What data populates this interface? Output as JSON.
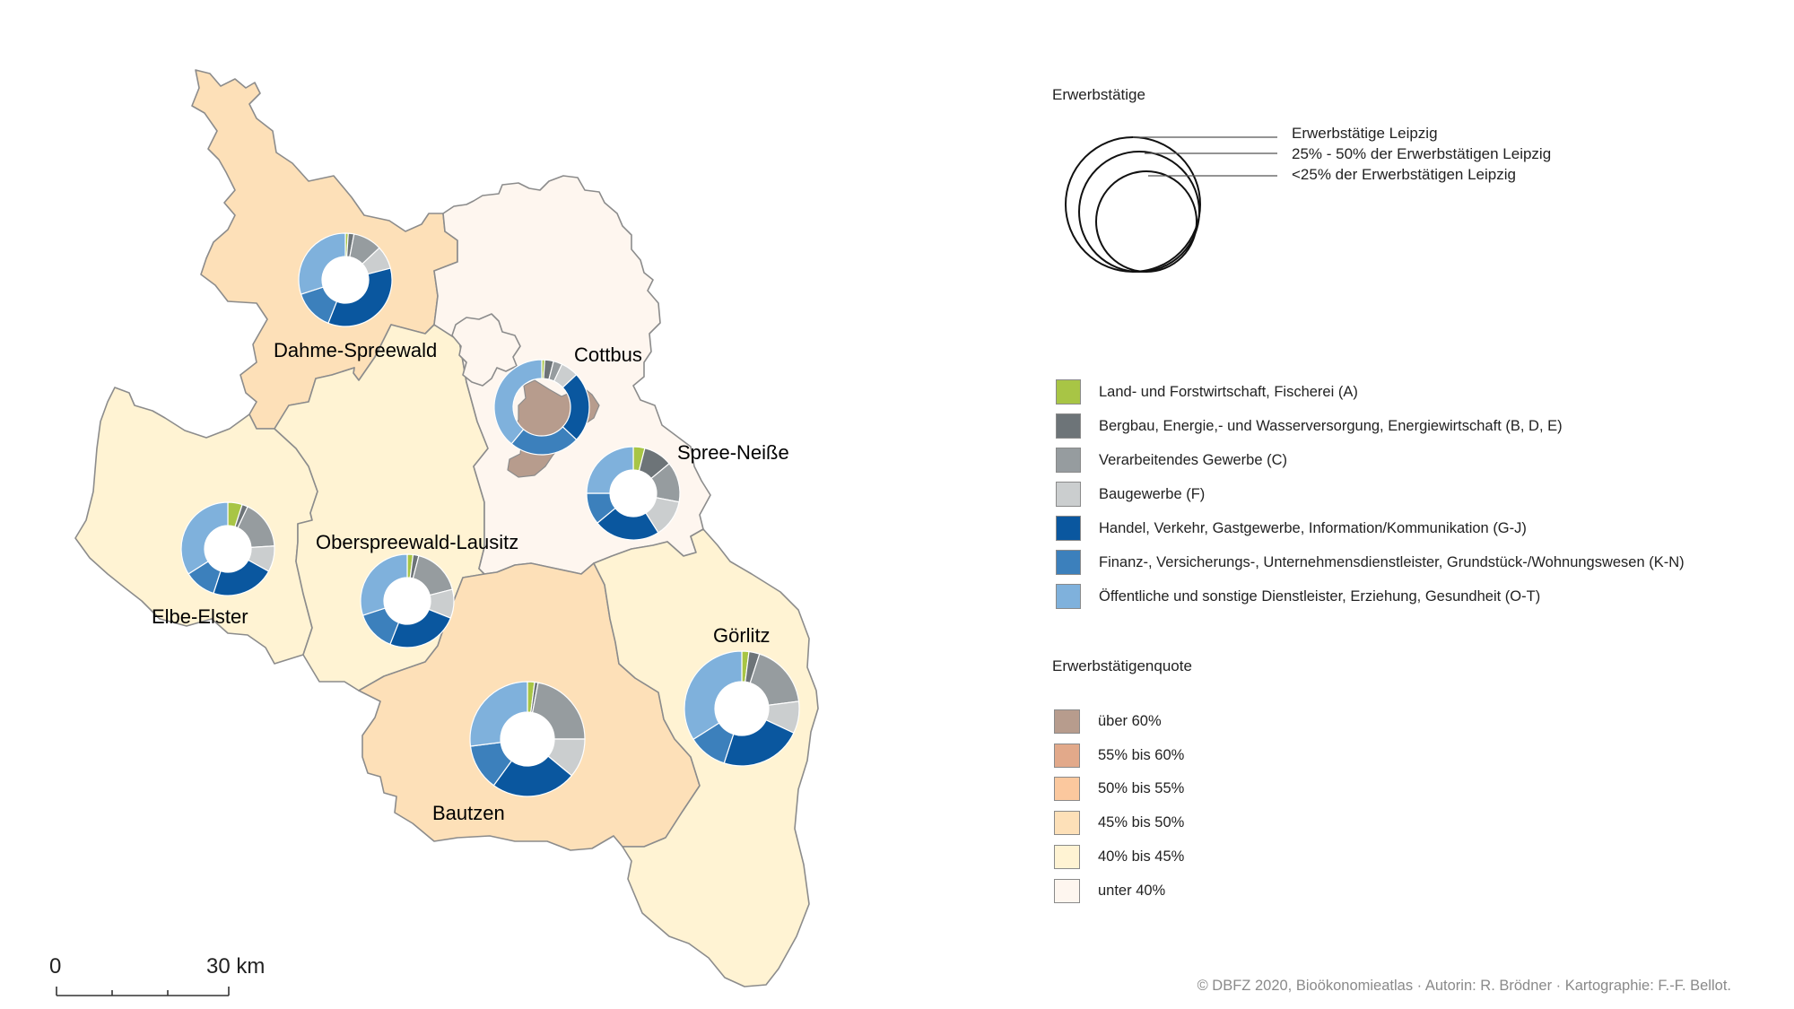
{
  "regions": [
    {
      "id": "dahme-spreewald",
      "name": "Dahme-Spreewald",
      "fill": "#fde0b8",
      "shares": [
        1,
        2,
        10,
        8,
        35,
        14,
        30
      ]
    },
    {
      "id": "elbe-elster",
      "name": "Elbe-Elster",
      "fill": "#fff3d3",
      "shares": [
        5,
        2,
        17,
        9,
        22,
        11,
        34
      ]
    },
    {
      "id": "oberspreewald-lausitz",
      "name": "Oberspreewald-Lausitz",
      "fill": "#fff3d3",
      "shares": [
        2,
        2,
        17,
        10,
        25,
        14,
        30
      ]
    },
    {
      "id": "cottbus",
      "name": "Cottbus",
      "fill": "#fef6ef",
      "shares": [
        1,
        3,
        3,
        6,
        24,
        24,
        39
      ]
    },
    {
      "id": "spree-neisse",
      "name": "Spree-Neiße",
      "fill": "#fef6ef",
      "shares": [
        4,
        10,
        14,
        13,
        23,
        11,
        25
      ]
    },
    {
      "id": "bautzen",
      "name": "Bautzen",
      "fill": "#fde0b8",
      "shares": [
        2,
        1,
        22,
        11,
        24,
        13,
        27
      ]
    },
    {
      "id": "goerlitz",
      "name": "Görlitz",
      "fill": "#fff3d3",
      "shares": [
        2,
        3,
        18,
        9,
        23,
        11,
        34
      ]
    }
  ],
  "city_overlay": {
    "name": "Cottbus-city-area",
    "fill": "#b79c8d"
  },
  "circle_legend": {
    "title": "Erwerbstätige",
    "labels": [
      "Erwerbstätige Leipzig",
      "25% - 50% der Erwerbstätigen Leipzig",
      "<25% der Erwerbstätigen Leipzig"
    ]
  },
  "sector_legend": [
    {
      "label": "Land- und Forstwirtschaft, Fischerei (A)",
      "color": "#a8c545"
    },
    {
      "label": "Bergbau, Energie,- und Wasserversorgung, Energiewirtschaft (B, D, E)",
      "color": "#6d7478"
    },
    {
      "label": "Verarbeitendes Gewerbe (C)",
      "color": "#969c9f"
    },
    {
      "label": "Baugewerbe (F)",
      "color": "#cbcecf"
    },
    {
      "label": "Handel, Verkehr, Gastgewerbe, Information/Kommunikation (G-J)",
      "color": "#0a579f"
    },
    {
      "label": "Finanz-, Versicherungs-, Unternehmensdienstleister, Grundstück-/Wohnungswesen (K-N)",
      "color": "#3c80bc"
    },
    {
      "label": "Öffentliche und sonstige Dienstleister, Erziehung, Gesundheit (O-T)",
      "color": "#7fb1dc"
    }
  ],
  "quota_legend": {
    "title": "Erwerbstätigenquote",
    "items": [
      {
        "label": "über 60%",
        "color": "#b79c8d"
      },
      {
        "label": "55% bis 60%",
        "color": "#e2a98a"
      },
      {
        "label": "50% bis 55%",
        "color": "#fbc89e"
      },
      {
        "label": "45% bis 50%",
        "color": "#fde0b8"
      },
      {
        "label": "40% bis 45%",
        "color": "#fff3d3"
      },
      {
        "label": "unter 40%",
        "color": "#fef6ef"
      }
    ]
  },
  "scale_bar": {
    "start": "0",
    "end": "30",
    "unit": "km"
  },
  "credit": "© DBFZ 2020, Bioökonomieatlas · Autorin: R. Brödner · Kartographie: F.-F. Bellot."
}
